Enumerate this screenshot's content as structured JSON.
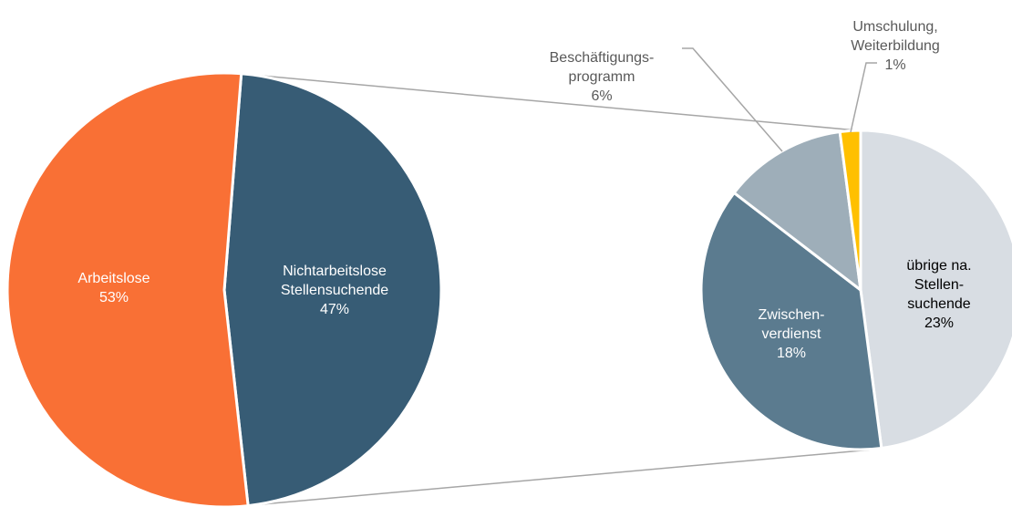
{
  "chart_data": [
    {
      "type": "pie",
      "categories": [
        "Nichtarbeitslose\nStellensuchende",
        "Arbeitslose"
      ],
      "values": [
        47,
        53
      ],
      "value_labels": [
        "47%",
        "53%"
      ],
      "colors": [
        "#375c75",
        "#f97035"
      ]
    },
    {
      "type": "pie",
      "categories": [
        "übrige na.\nStellen-\nsuchende",
        "Zwischen-\nverdienst",
        "Beschäftigungs-\nprogramm",
        "Umschulung,\nWeiterbildung"
      ],
      "values": [
        23,
        18,
        6,
        1
      ],
      "value_labels": [
        "23%",
        "18%",
        "6%",
        "1%"
      ],
      "colors": [
        "#d8dde3",
        "#5b7b8f",
        "#9eaeb9",
        "#ffc000"
      ]
    }
  ]
}
